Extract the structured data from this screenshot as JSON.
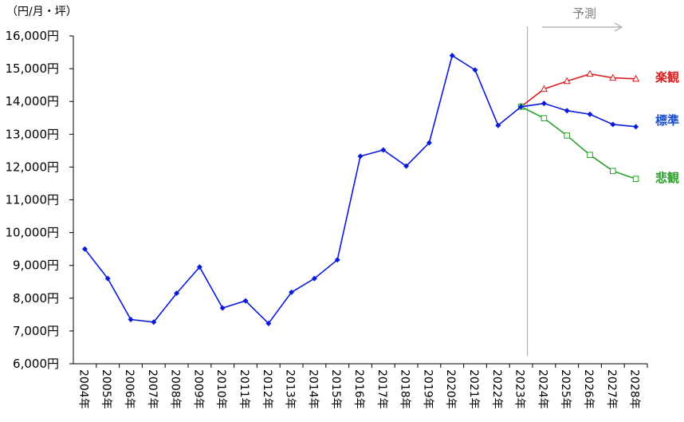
{
  "chart_data": {
    "type": "line",
    "unit_label": "（円/月・坪）",
    "forecast_label": "予測",
    "forecast_start": "2023年",
    "categories": [
      "2004年",
      "2005年",
      "2006年",
      "2007年",
      "2008年",
      "2009年",
      "2010年",
      "2011年",
      "2012年",
      "2013年",
      "2014年",
      "2015年",
      "2016年",
      "2017年",
      "2018年",
      "2019年",
      "2020年",
      "2021年",
      "2022年",
      "2023年",
      "2024年",
      "2025年",
      "2026年",
      "2027年",
      "2028年"
    ],
    "yticks": [
      "6,000円",
      "7,000円",
      "8,000円",
      "9,000円",
      "10,000円",
      "11,000円",
      "12,000円",
      "13,000円",
      "14,000円",
      "15,000円",
      "16,000円"
    ],
    "ylim": [
      6000,
      16000
    ],
    "series": [
      {
        "name": "標準",
        "color": "#0a1adc",
        "marker": "diamond",
        "values": [
          9500,
          8600,
          7350,
          7270,
          8150,
          8950,
          7700,
          7920,
          7230,
          8180,
          8600,
          9170,
          12330,
          12520,
          12030,
          12740,
          15400,
          14960,
          13270,
          13840,
          13940,
          13720,
          13610,
          13300,
          13230
        ]
      },
      {
        "name": "楽観",
        "color": "#dc1e1e",
        "marker": "triangle",
        "values": [
          null,
          null,
          null,
          null,
          null,
          null,
          null,
          null,
          null,
          null,
          null,
          null,
          null,
          null,
          null,
          null,
          null,
          null,
          null,
          13840,
          14380,
          14620,
          14840,
          14720,
          14690
        ]
      },
      {
        "name": "悲観",
        "color": "#2aa02a",
        "marker": "square",
        "values": [
          null,
          null,
          null,
          null,
          null,
          null,
          null,
          null,
          null,
          null,
          null,
          null,
          null,
          null,
          null,
          null,
          null,
          null,
          null,
          13840,
          13490,
          12960,
          12370,
          11880,
          11640
        ]
      }
    ]
  }
}
